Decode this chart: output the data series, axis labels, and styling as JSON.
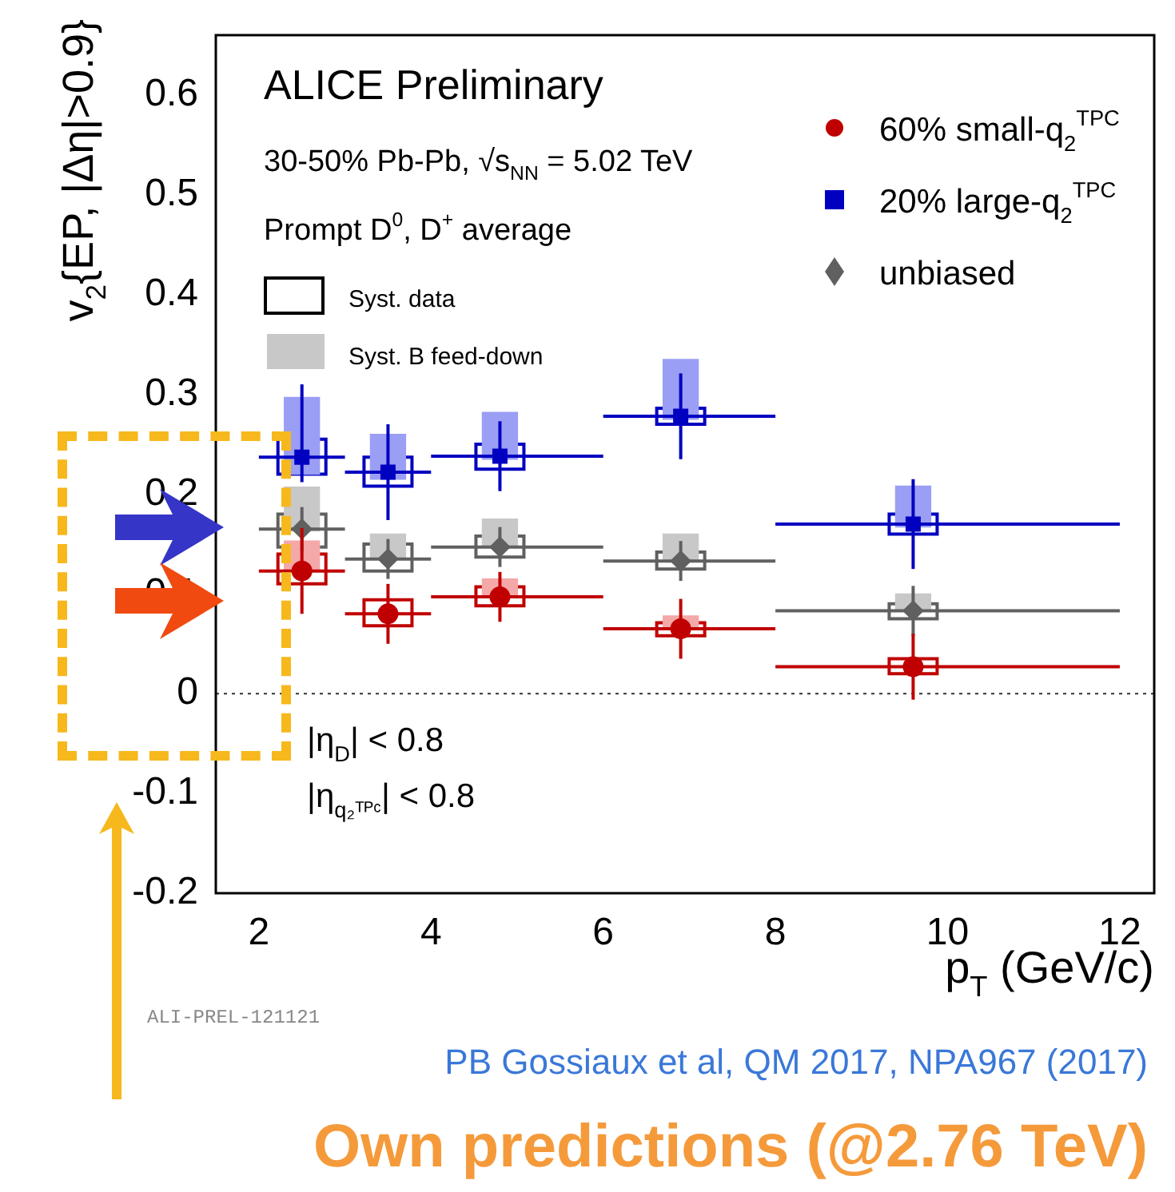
{
  "chart_data": {
    "type": "scatter",
    "title": "ALICE Preliminary",
    "xlabel": "p$_{T}$ (GeV/c)",
    "ylabel": "v$_{2}${EP, |Δη|>0.9}",
    "xlim": [
      1.5,
      12.4
    ],
    "xticks": [
      2,
      4,
      6,
      8,
      10,
      12
    ],
    "ylim": [
      -0.2,
      0.66
    ],
    "yticks": [
      -0.2,
      -0.1,
      0,
      0.1,
      0.2,
      0.3,
      0.4,
      0.5,
      0.6
    ],
    "legend": "top right",
    "ref_lines": [
      {
        "axis": "y",
        "value": 0,
        "line_style": "dotted",
        "color": "#333333"
      }
    ],
    "annotations": [
      "30-50% Pb-Pb, √s$_{NN}$ = 5.02 TeV",
      "Prompt D$^{0}$, D$^{+}$ average",
      "Syst. data",
      "Syst. B feed-down",
      "|η$_{D}$| < 0.8",
      "|η$_{q₂ᵀᴾᶜ}$| < 0.8",
      "ALI-PREL-121121",
      "PB Gossiaux et al, QM 2017, NPA967 (2017)",
      "Own predictions (@2.76 TeV)"
    ],
    "series": [
      {
        "type": "bar",
        "x": [
          2.5,
          3.5,
          4.8,
          6.9,
          9.6
        ],
        "base": [
          0.22,
          0.215,
          0.235,
          0.275,
          0.167
        ],
        "values": [
          0.077,
          0.045,
          0.047,
          0.06,
          0.041
        ],
        "color": "#9a9ef5"
      },
      {
        "type": "bar",
        "x": [
          2.5,
          3.5,
          4.8,
          6.9,
          9.6
        ],
        "base": [
          0.163,
          0.135,
          0.147,
          0.133,
          0.083
        ],
        "values": [
          0.044,
          0.025,
          0.028,
          0.027,
          0.017
        ],
        "color": "#c8c8c8"
      },
      {
        "type": "bar",
        "x": [
          2.5,
          4.8,
          6.9
        ],
        "base": [
          0.123,
          0.097,
          0.065
        ],
        "values": [
          0.03,
          0.018,
          0.013
        ],
        "color": "#f5a8a8"
      },
      {
        "type": "bar",
        "x": [
          2.5,
          3.5,
          4.8,
          6.9,
          9.6
        ],
        "base": [
          0.22,
          0.208,
          0.225,
          0.27,
          0.16
        ],
        "values": [
          0.035,
          0.029,
          0.025,
          0.016,
          0.02
        ],
        "color": "#0000c0",
        "line_style": "solid"
      },
      {
        "type": "bar",
        "x": [
          2.5,
          3.5,
          4.8,
          6.9,
          9.6
        ],
        "base": [
          0.147,
          0.123,
          0.137,
          0.125,
          0.075
        ],
        "values": [
          0.033,
          0.027,
          0.021,
          0.017,
          0.015
        ],
        "color": "#606060",
        "line_style": "solid"
      },
      {
        "type": "bar",
        "x": [
          2.5,
          3.5,
          4.8,
          6.9,
          9.6
        ],
        "base": [
          0.11,
          0.068,
          0.088,
          0.058,
          0.02
        ],
        "values": [
          0.03,
          0.026,
          0.019,
          0.013,
          0.015
        ],
        "color": "#c00000",
        "line_style": "solid"
      },
      {
        "name": "60% small-q$_{2}$$^{TPC}$",
        "marker": "circle",
        "color": "#c00000",
        "x": [
          2.5,
          3.5,
          4.8,
          6.9,
          9.6
        ],
        "values": [
          0.123,
          0.08,
          0.097,
          0.065,
          0.027
        ],
        "errors": [
          0.043,
          0.03,
          0.025,
          0.03,
          0.033
        ],
        "xerrors": [
          [
            2,
            3
          ],
          [
            3,
            4
          ],
          [
            4,
            6
          ],
          [
            6,
            8
          ],
          [
            8,
            12
          ]
        ]
      },
      {
        "name": "20% large-q$_{2}$$^{TPC}$",
        "marker": "square",
        "color": "#0000c0",
        "x": [
          2.5,
          3.5,
          4.8,
          6.9,
          9.6
        ],
        "values": [
          0.237,
          0.222,
          0.238,
          0.278,
          0.17
        ],
        "errors": [
          [
            0.212,
            0.31
          ],
          0.048,
          0.035,
          0.043,
          0.045
        ],
        "xerrors": [
          [
            2,
            3
          ],
          [
            3,
            4
          ],
          [
            4,
            6
          ],
          [
            6,
            8
          ],
          [
            8,
            12
          ]
        ]
      },
      {
        "name": "unbiased",
        "marker": "diamond",
        "color": "#606060",
        "x": [
          2.5,
          3.5,
          4.8,
          6.9,
          9.6
        ],
        "values": [
          0.165,
          0.135,
          0.147,
          0.133,
          0.083
        ],
        "errors": [
          0.022,
          0.02,
          0.02,
          0.02,
          0.025
        ],
        "xerrors": [
          [
            2,
            3
          ],
          [
            3,
            4
          ],
          [
            4,
            6
          ],
          [
            6,
            8
          ],
          [
            8,
            12
          ]
        ]
      }
    ]
  }
}
